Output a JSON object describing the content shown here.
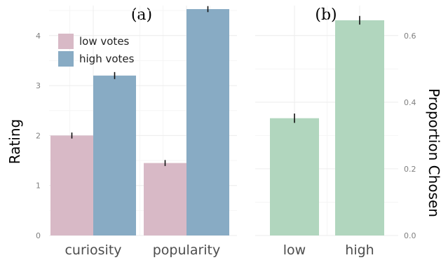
{
  "chart_data": [
    {
      "type": "bar",
      "panel_label": "(a)",
      "categories": [
        "curiosity",
        "popularity"
      ],
      "series": [
        {
          "name": "low votes",
          "values": [
            2.0,
            1.45
          ],
          "errors": [
            0.06,
            0.06
          ],
          "color": "#d8b9c6"
        },
        {
          "name": "high votes",
          "values": [
            3.2,
            4.53
          ],
          "errors": [
            0.07,
            0.06
          ],
          "color": "#88abc4"
        }
      ],
      "ylabel": "Rating",
      "ylim": [
        0,
        4.6
      ],
      "yticks": [
        0,
        1,
        2,
        3,
        4
      ],
      "yticks_text": [
        "0",
        "1",
        "2",
        "3",
        "4"
      ],
      "legend": "top-left",
      "grid": true
    },
    {
      "type": "bar",
      "panel_label": "(b)",
      "categories": [
        "low",
        "high"
      ],
      "values": [
        0.352,
        0.646
      ],
      "errors": [
        0.014,
        0.013
      ],
      "color": "#b1d6be",
      "ylabel": "Proportion Chosen",
      "ylim": [
        0,
        0.69
      ],
      "yticks": [
        0.0,
        0.2,
        0.4,
        0.6
      ],
      "yticks_text": [
        "0.0",
        "0.2",
        "0.4",
        "0.6"
      ],
      "yaxis_side": "right",
      "grid": true
    }
  ]
}
